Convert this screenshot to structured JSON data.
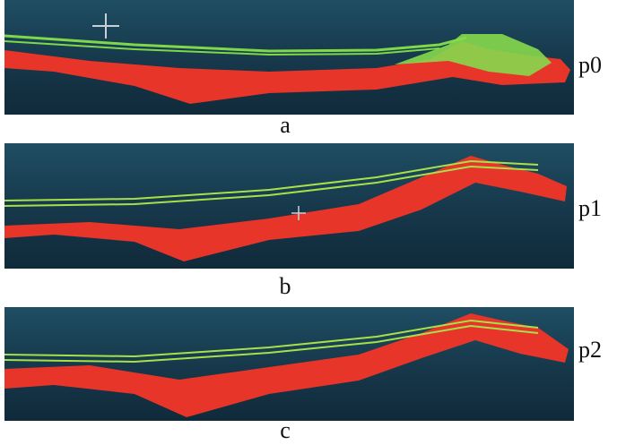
{
  "panels": [
    {
      "caption": "a",
      "tag": "p0"
    },
    {
      "caption": "b",
      "tag": "p1"
    },
    {
      "caption": "c",
      "tag": "p2"
    }
  ]
}
